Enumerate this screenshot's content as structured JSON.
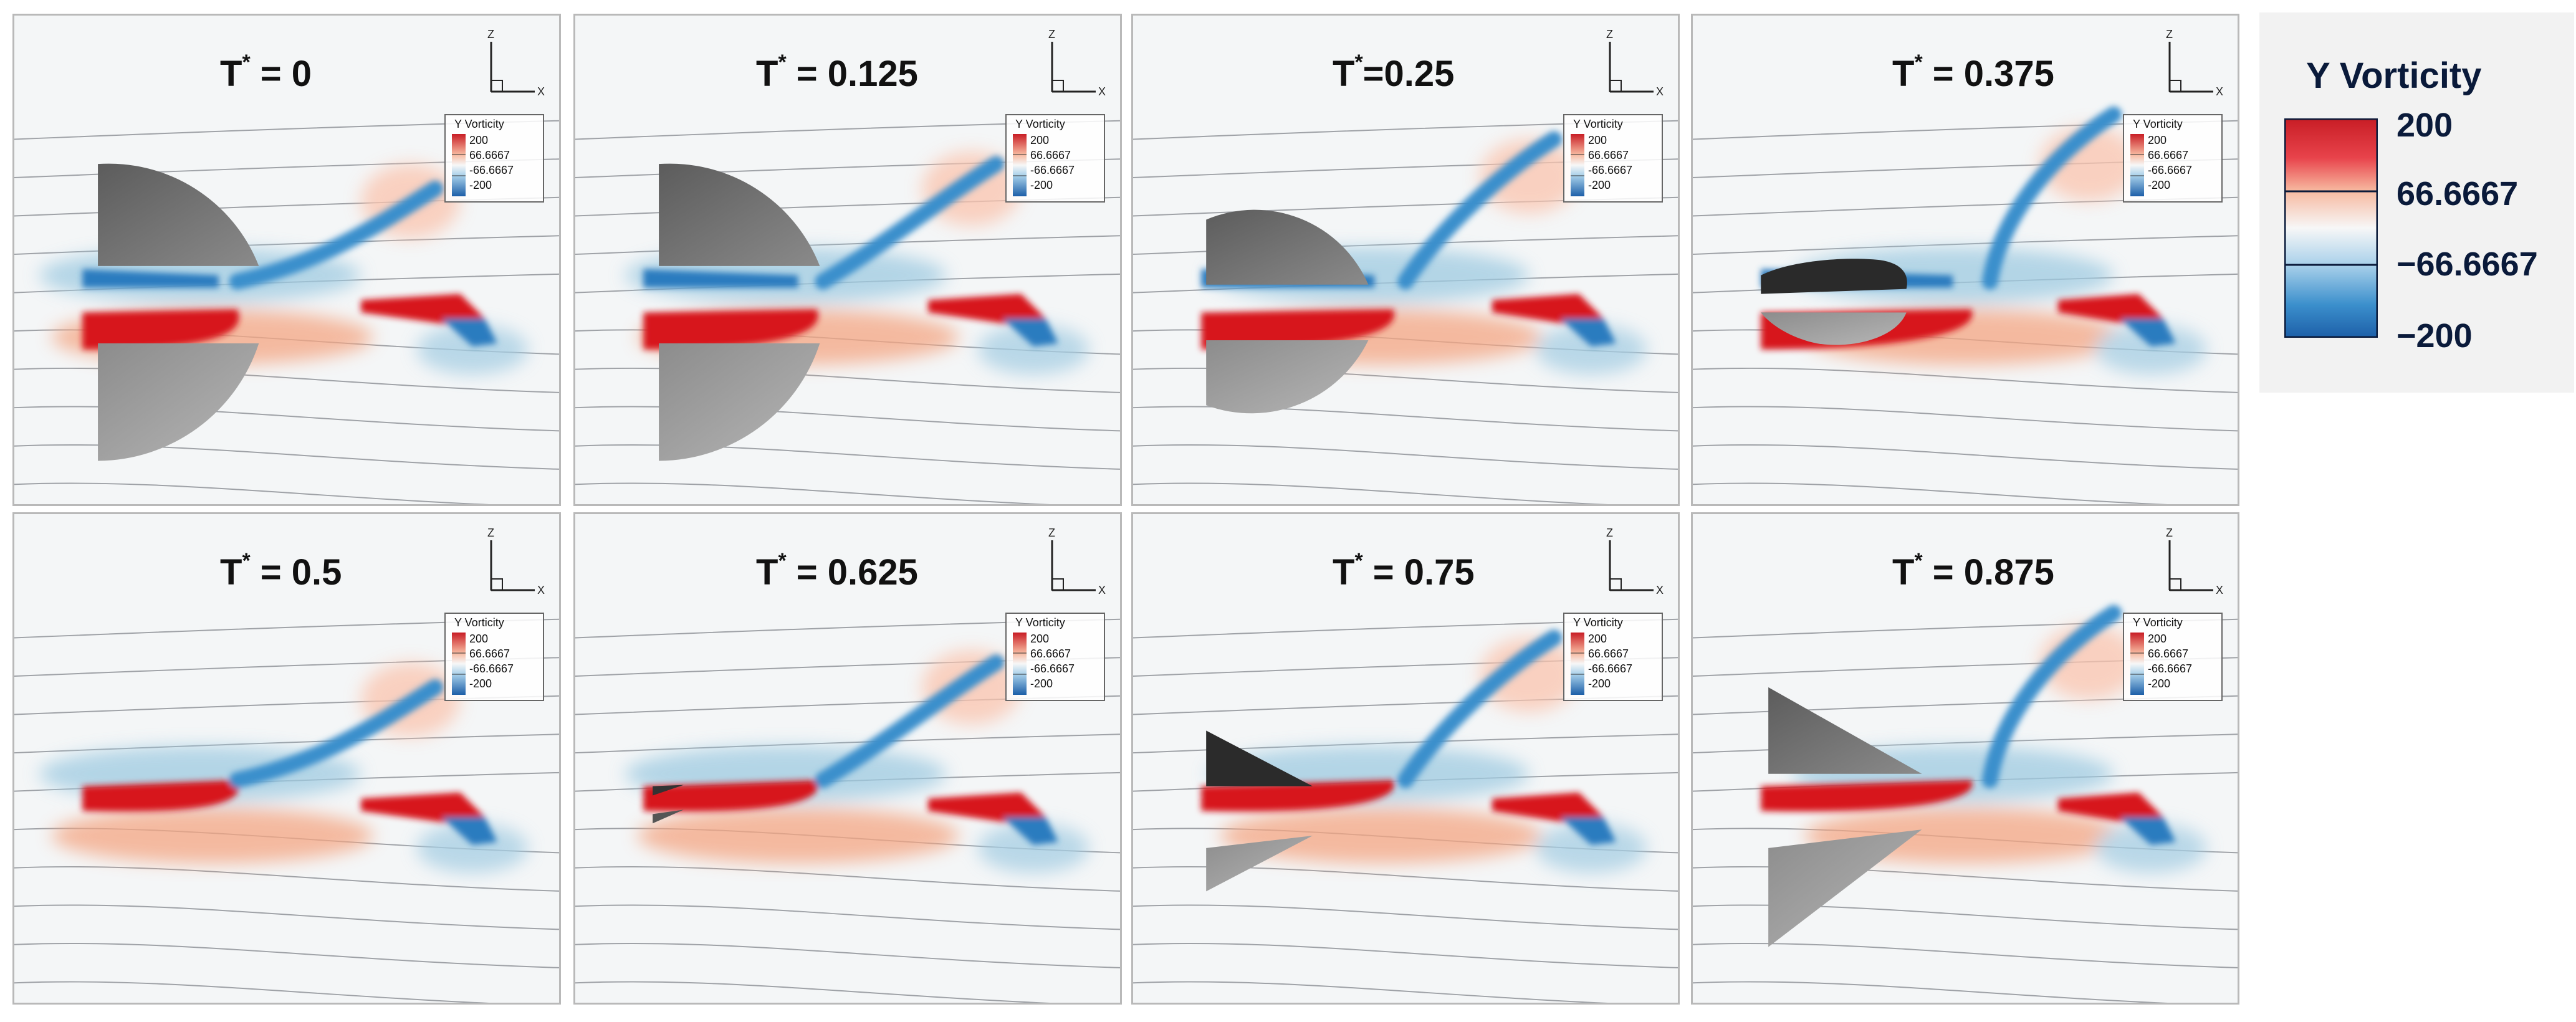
{
  "figure": {
    "legend": {
      "title": "Y Vorticity",
      "ticks": [
        "200",
        "66.6667",
        "−66.6667",
        "−200"
      ],
      "colors": {
        "positive": "#d7191c",
        "positive_light": "#f4a582",
        "neutral": "#f7f7f7",
        "negative_light": "#92c5de",
        "negative": "#1f78b4",
        "outline": "#0a1a3a"
      }
    },
    "mini_legend": {
      "title": "Y Vorticity",
      "ticks": [
        "200",
        "66.6667",
        "-66.6667",
        "-200"
      ]
    },
    "axis_labels": {
      "z": "Z",
      "x": "X"
    },
    "panels": [
      {
        "label_prefix": "T",
        "label_suffix": " = 0",
        "wing": "open-wide"
      },
      {
        "label_prefix": "T",
        "label_suffix": " = 0.125",
        "wing": "open-wide"
      },
      {
        "label_prefix": "T",
        "label_suffix": "=0.25",
        "wing": "open-mid"
      },
      {
        "label_prefix": "T",
        "label_suffix": " = 0.375",
        "wing": "closing"
      },
      {
        "label_prefix": "T",
        "label_suffix": " = 0.5",
        "wing": "closed"
      },
      {
        "label_prefix": "T",
        "label_suffix": " = 0.625",
        "wing": "opening-small"
      },
      {
        "label_prefix": "T",
        "label_suffix": " = 0.75",
        "wing": "opening-mid"
      },
      {
        "label_prefix": "T",
        "label_suffix": " = 0.875",
        "wing": "opening-wide"
      }
    ]
  }
}
